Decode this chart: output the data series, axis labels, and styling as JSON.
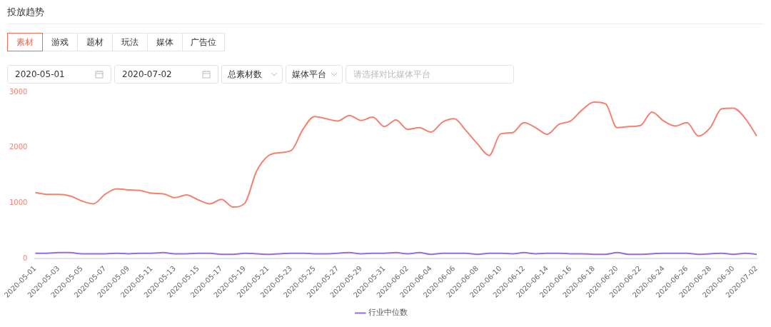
{
  "chart_data": {
    "type": "line",
    "title": "投放趋势",
    "annotations": [
      "素材",
      "游戏",
      "题材",
      "玩法",
      "媒体",
      "广告位",
      "2020-05-01",
      "2020-07-02",
      "总素材数",
      "媒体平台",
      "请选择对比媒体平台"
    ],
    "categories": [
      "2020-05-01",
      null,
      "2020-05-03",
      null,
      "2020-05-05",
      null,
      "2020-05-07",
      null,
      "2020-05-09",
      null,
      "2020-05-11",
      null,
      "2020-05-13",
      null,
      "2020-05-15",
      null,
      "2020-05-17",
      null,
      "2020-05-19",
      null,
      "2020-05-21",
      null,
      "2020-05-23",
      null,
      "2020-05-25",
      null,
      "2020-05-27",
      null,
      "2020-05-29",
      null,
      "2020-05-31",
      null,
      "2020-06-02",
      null,
      "2020-06-04",
      null,
      "2020-06-06",
      null,
      "2020-06-08",
      null,
      "2020-06-10",
      null,
      "2020-06-12",
      null,
      "2020-06-14",
      null,
      "2020-06-16",
      null,
      "2020-06-18",
      null,
      "2020-06-20",
      null,
      "2020-06-22",
      null,
      "2020-06-24",
      null,
      "2020-06-26",
      null,
      "2020-06-28",
      null,
      "2020-06-30",
      null,
      "2020-07-02"
    ],
    "series": [
      {
        "color": "#f5806e",
        "values": [
          1190,
          1160,
          1160,
          1130,
          1040,
          990,
          1160,
          1260,
          1240,
          1230,
          1180,
          1170,
          1100,
          1150,
          1060,
          990,
          1070,
          930,
          1000,
          1570,
          1850,
          1910,
          1950,
          2330,
          2560,
          2520,
          2480,
          2580,
          2490,
          2550,
          2380,
          2500,
          2330,
          2360,
          2280,
          2460,
          2520,
          2310,
          2070,
          1860,
          2250,
          2270,
          2450,
          2360,
          2240,
          2420,
          2480,
          2680,
          2820,
          2790,
          2360,
          2380,
          2400,
          2640,
          2480,
          2390,
          2450,
          2210,
          2360,
          2700,
          2710,
          2530,
          2210
        ]
      },
      {
        "name": "行业中位数",
        "color": "#9a6ae0",
        "values": [
          100,
          100,
          110,
          110,
          90,
          90,
          90,
          100,
          90,
          100,
          100,
          110,
          90,
          90,
          100,
          100,
          80,
          80,
          100,
          90,
          80,
          90,
          100,
          100,
          90,
          90,
          100,
          110,
          90,
          100,
          100,
          110,
          90,
          110,
          80,
          100,
          100,
          100,
          80,
          100,
          100,
          90,
          110,
          90,
          100,
          100,
          90,
          90,
          80,
          80,
          110,
          80,
          80,
          90,
          100,
          100,
          100,
          80,
          90,
          100,
          80,
          100,
          80
        ]
      }
    ],
    "ylim": [
      0,
      3000
    ],
    "yticks": [
      0,
      1000,
      2000,
      3000
    ],
    "grid": false,
    "legend": "bottom",
    "marker": "none",
    "line_style": "solid"
  }
}
